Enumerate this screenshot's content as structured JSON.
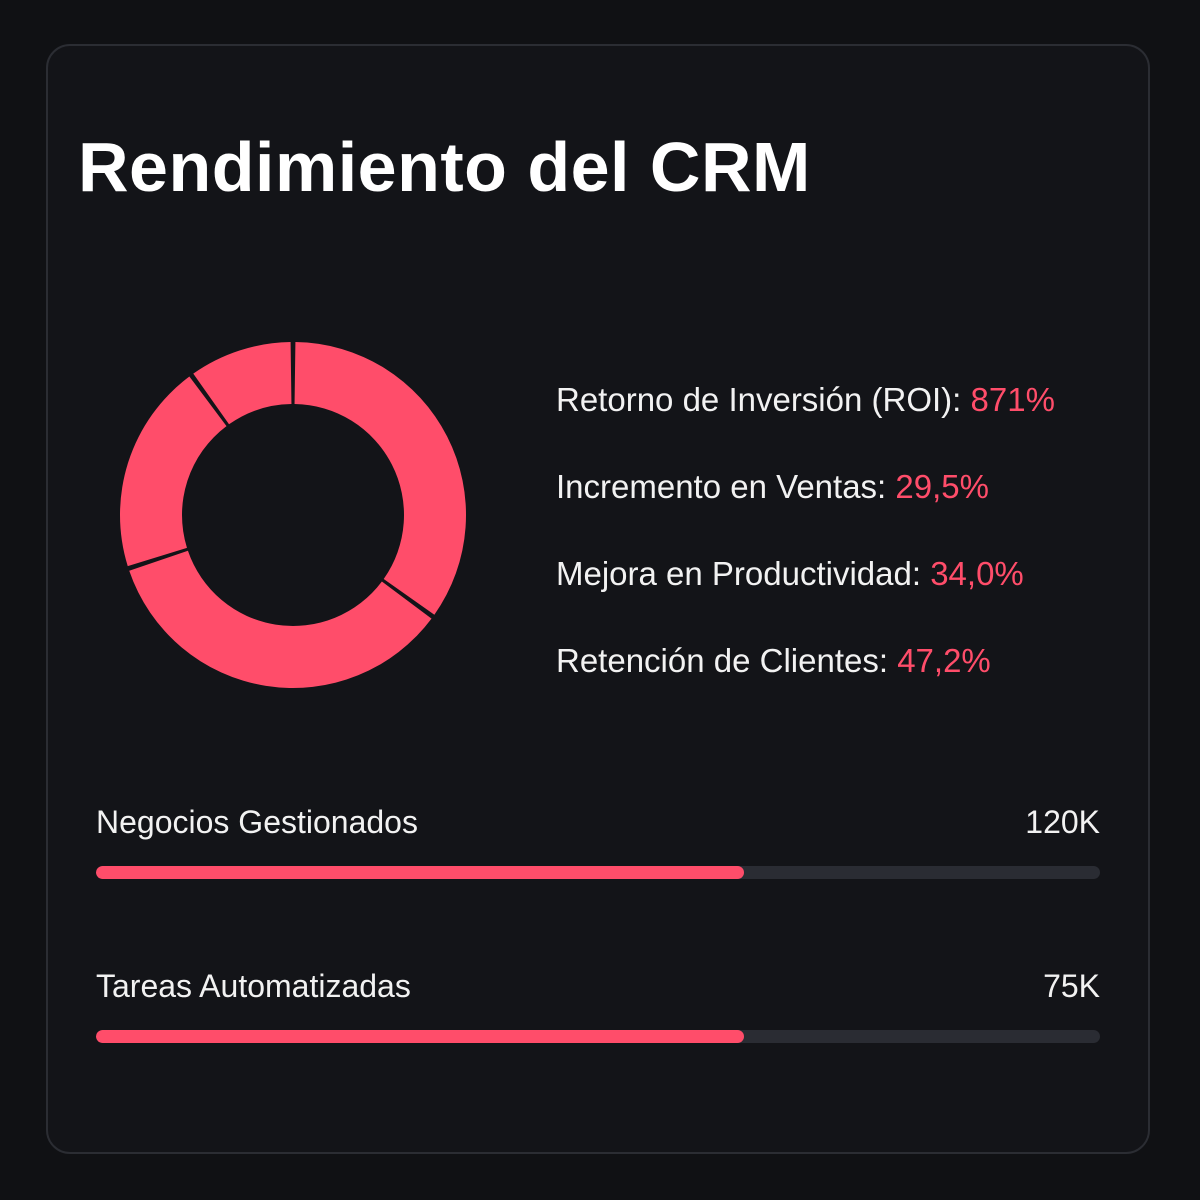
{
  "header": {
    "title": "Rendimiento del CRM"
  },
  "accent_color": "#ff4d6a",
  "chart_data": {
    "type": "pie",
    "title": "",
    "slices": [
      {
        "value": 35
      },
      {
        "value": 35
      },
      {
        "value": 20
      },
      {
        "value": 10
      }
    ]
  },
  "metrics": [
    {
      "label": "Retorno de Inversión (ROI):",
      "value": "871%"
    },
    {
      "label": "Incremento en Ventas:",
      "value": "29,5%"
    },
    {
      "label": "Mejora en Productividad:",
      "value": "34,0%"
    },
    {
      "label": "Retención de Clientes:",
      "value": "47,2%"
    }
  ],
  "bars": [
    {
      "label": "Negocios Gestionados",
      "value": "120K",
      "fill": 0.645
    },
    {
      "label": "Tareas Automatizadas",
      "value": "75K",
      "fill": 0.645
    }
  ]
}
